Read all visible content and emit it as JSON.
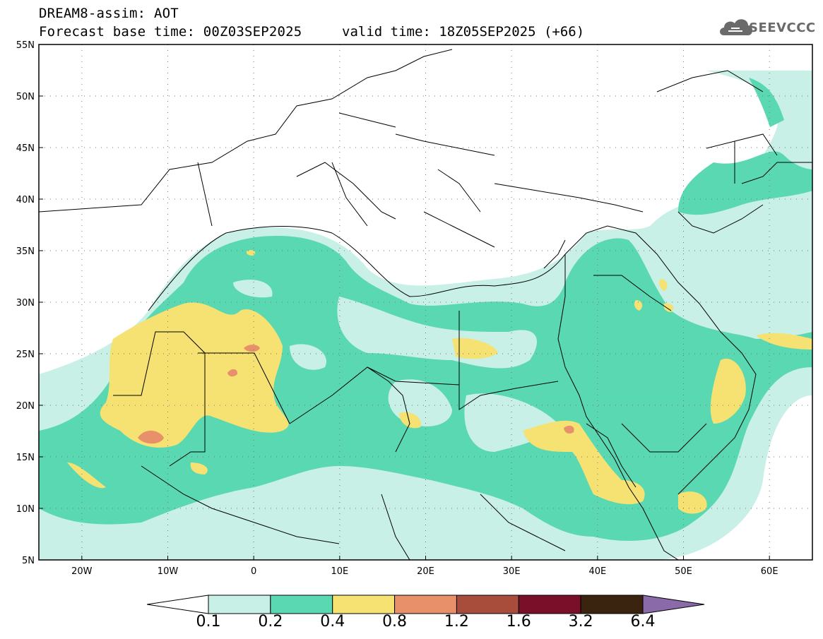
{
  "header": {
    "model_title": "DREAM8-assim: AOT",
    "base_time": "Forecast base time: 00Z03SEP2025",
    "valid_time": "valid time: 18Z05SEP2025 (+66)"
  },
  "logo": {
    "text": "SEEVCCC",
    "icon": "cloud-icon"
  },
  "map": {
    "lat_labels": [
      "55N",
      "50N",
      "45N",
      "40N",
      "35N",
      "30N",
      "25N",
      "20N",
      "15N",
      "10N",
      "5N"
    ],
    "lon_labels": [
      "20W",
      "10W",
      "0",
      "10E",
      "20E",
      "30E",
      "40E",
      "50E",
      "60E"
    ],
    "lat_range": [
      5,
      55
    ],
    "lon_range": [
      -25,
      65
    ],
    "grid": "dotted"
  },
  "colorbar": {
    "labels": [
      "0.1",
      "0.2",
      "0.4",
      "0.8",
      "1.2",
      "1.6",
      "3.2",
      "6.4"
    ],
    "colors": [
      "#c8f0e6",
      "#5ad8b2",
      "#f5e272",
      "#e8906a",
      "#a84c3c",
      "#7a0f2a",
      "#3a2410",
      "#8a6aa8"
    ],
    "under_color": "#ffffff"
  }
}
